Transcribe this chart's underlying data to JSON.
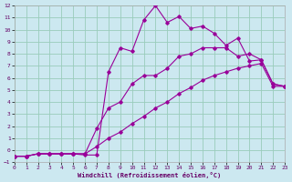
{
  "xlabel": "Windchill (Refroidissement éolien,°C)",
  "bg_color": "#cce8f0",
  "grid_color": "#99ccbb",
  "line_color": "#990099",
  "xlim": [
    0,
    23
  ],
  "ylim": [
    -1,
    12
  ],
  "xticks": [
    0,
    1,
    2,
    3,
    4,
    5,
    6,
    7,
    8,
    9,
    10,
    11,
    12,
    13,
    14,
    15,
    16,
    17,
    18,
    19,
    20,
    21,
    22,
    23
  ],
  "yticks": [
    -1,
    0,
    1,
    2,
    3,
    4,
    5,
    6,
    7,
    8,
    9,
    10,
    11,
    12
  ],
  "line1_x": [
    0,
    1,
    2,
    3,
    4,
    5,
    6,
    7,
    8,
    9,
    10,
    11,
    12,
    13,
    14,
    15,
    16,
    17,
    18,
    19,
    20,
    21,
    22,
    23
  ],
  "line1_y": [
    -0.5,
    -0.5,
    -0.3,
    -0.3,
    -0.3,
    -0.3,
    -0.4,
    -0.4,
    6.5,
    8.5,
    8.2,
    10.8,
    12.0,
    10.6,
    11.1,
    10.1,
    10.3,
    9.7,
    8.7,
    9.3,
    7.4,
    7.5,
    5.5,
    5.3
  ],
  "line2_x": [
    0,
    1,
    2,
    3,
    4,
    5,
    6,
    7,
    8,
    9,
    10,
    11,
    12,
    13,
    14,
    15,
    16,
    17,
    18,
    19,
    20,
    21,
    22,
    23
  ],
  "line2_y": [
    -0.5,
    -0.5,
    -0.3,
    -0.3,
    -0.3,
    -0.3,
    -0.3,
    1.8,
    3.5,
    4.0,
    5.5,
    6.2,
    6.2,
    6.8,
    7.8,
    8.0,
    8.5,
    8.5,
    8.5,
    7.8,
    8.0,
    7.5,
    5.5,
    5.3
  ],
  "line3_x": [
    0,
    1,
    2,
    3,
    4,
    5,
    6,
    7,
    8,
    9,
    10,
    11,
    12,
    13,
    14,
    15,
    16,
    17,
    18,
    19,
    20,
    21,
    22,
    23
  ],
  "line3_y": [
    -0.5,
    -0.5,
    -0.3,
    -0.3,
    -0.3,
    -0.3,
    -0.3,
    0.3,
    1.0,
    1.5,
    2.2,
    2.8,
    3.5,
    4.0,
    4.7,
    5.2,
    5.8,
    6.2,
    6.5,
    6.8,
    7.0,
    7.2,
    5.3,
    5.3
  ]
}
